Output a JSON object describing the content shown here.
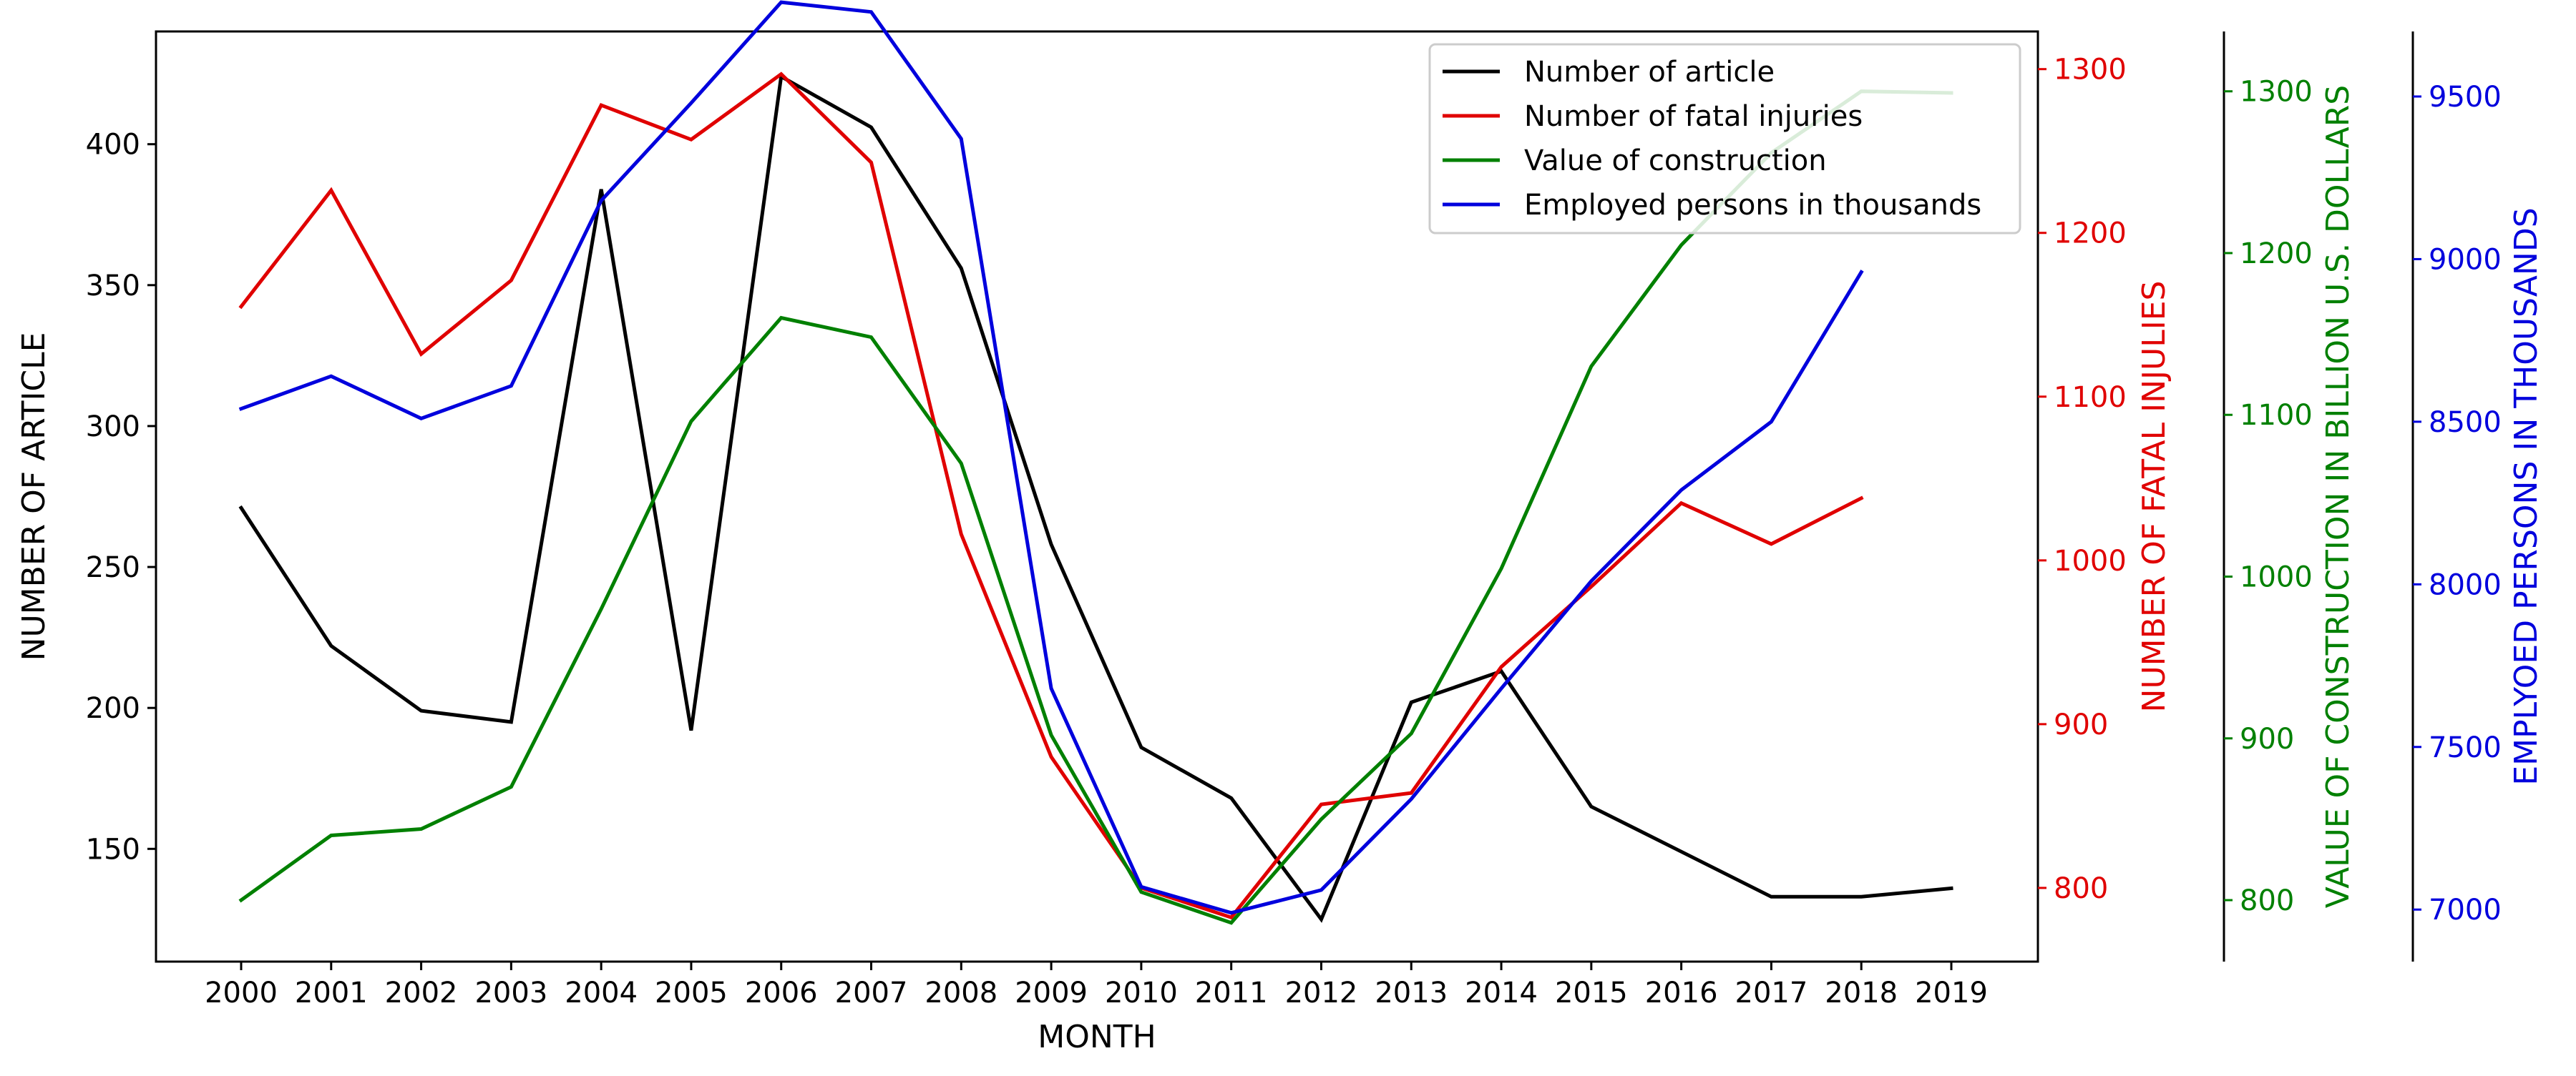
{
  "chart_data": {
    "type": "line",
    "xlabel": "MONTH",
    "categories": [
      "2000",
      "2001",
      "2002",
      "2003",
      "2004",
      "2005",
      "2006",
      "2007",
      "2008",
      "2009",
      "2010",
      "2011",
      "2012",
      "2013",
      "2014",
      "2015",
      "2016",
      "2017",
      "2018",
      "2019"
    ],
    "axes": [
      {
        "id": "articles",
        "label": "NUMBER OF ARTICLE",
        "color": "#000000",
        "ylim": [
          110,
          440
        ],
        "ticks": [
          150,
          200,
          250,
          300,
          350,
          400
        ]
      },
      {
        "id": "fatal",
        "label": "NUMBER OF FATAL INJULIES",
        "color": "#e00000",
        "ylim": [
          755,
          1323
        ],
        "ticks": [
          800,
          900,
          1000,
          1100,
          1200,
          1300
        ]
      },
      {
        "id": "construction",
        "label": "VALUE OF CONSTRUCTION IN BILLION U.S. DOLLARS",
        "color": "#008000",
        "ylim": [
          762,
          1337
        ],
        "ticks": [
          800,
          900,
          1000,
          1100,
          1200,
          1300
        ]
      },
      {
        "id": "employed",
        "label": "EMPLYOED PERSONS IN THOUSANDS",
        "color": "#0000dd",
        "ylim": [
          6840,
          9700
        ],
        "ticks": [
          7000,
          7500,
          8000,
          8500,
          9000,
          9500
        ]
      }
    ],
    "series": [
      {
        "name": "Number of article",
        "axis": "articles",
        "color": "#000000",
        "values": [
          271,
          222,
          199,
          195,
          384,
          192,
          424,
          406,
          356,
          258,
          186,
          168,
          125,
          202,
          213,
          165,
          149,
          133,
          133,
          136
        ]
      },
      {
        "name": "Number of fatal injuries",
        "axis": "fatal",
        "color": "#e00000",
        "values": [
          1155,
          1226,
          1126,
          1171,
          1278,
          1257,
          1297,
          1243,
          1016,
          880,
          800,
          782,
          851,
          858,
          935,
          984,
          1035,
          1010,
          1038,
          null
        ]
      },
      {
        "name": "Value of construction",
        "axis": "construction",
        "color": "#008000",
        "values": [
          800,
          840,
          844,
          870,
          980,
          1096,
          1160,
          1148,
          1070,
          902,
          805,
          786,
          850,
          903,
          1005,
          1130,
          1205,
          1262,
          1300,
          1299
        ]
      },
      {
        "name": "Employed persons in thousands",
        "axis": "employed",
        "color": "#0000dd",
        "values": [
          8540,
          8640,
          8510,
          8610,
          9180,
          9480,
          9790,
          9760,
          9370,
          7680,
          7070,
          6990,
          7060,
          7340,
          7680,
          8010,
          8290,
          8500,
          8960,
          null
        ]
      }
    ],
    "legend": {
      "position": "top-right",
      "entries": [
        "Number of article",
        "Number of fatal injuries",
        "Value of construction",
        "Employed persons in thousands"
      ]
    },
    "grid": false
  }
}
